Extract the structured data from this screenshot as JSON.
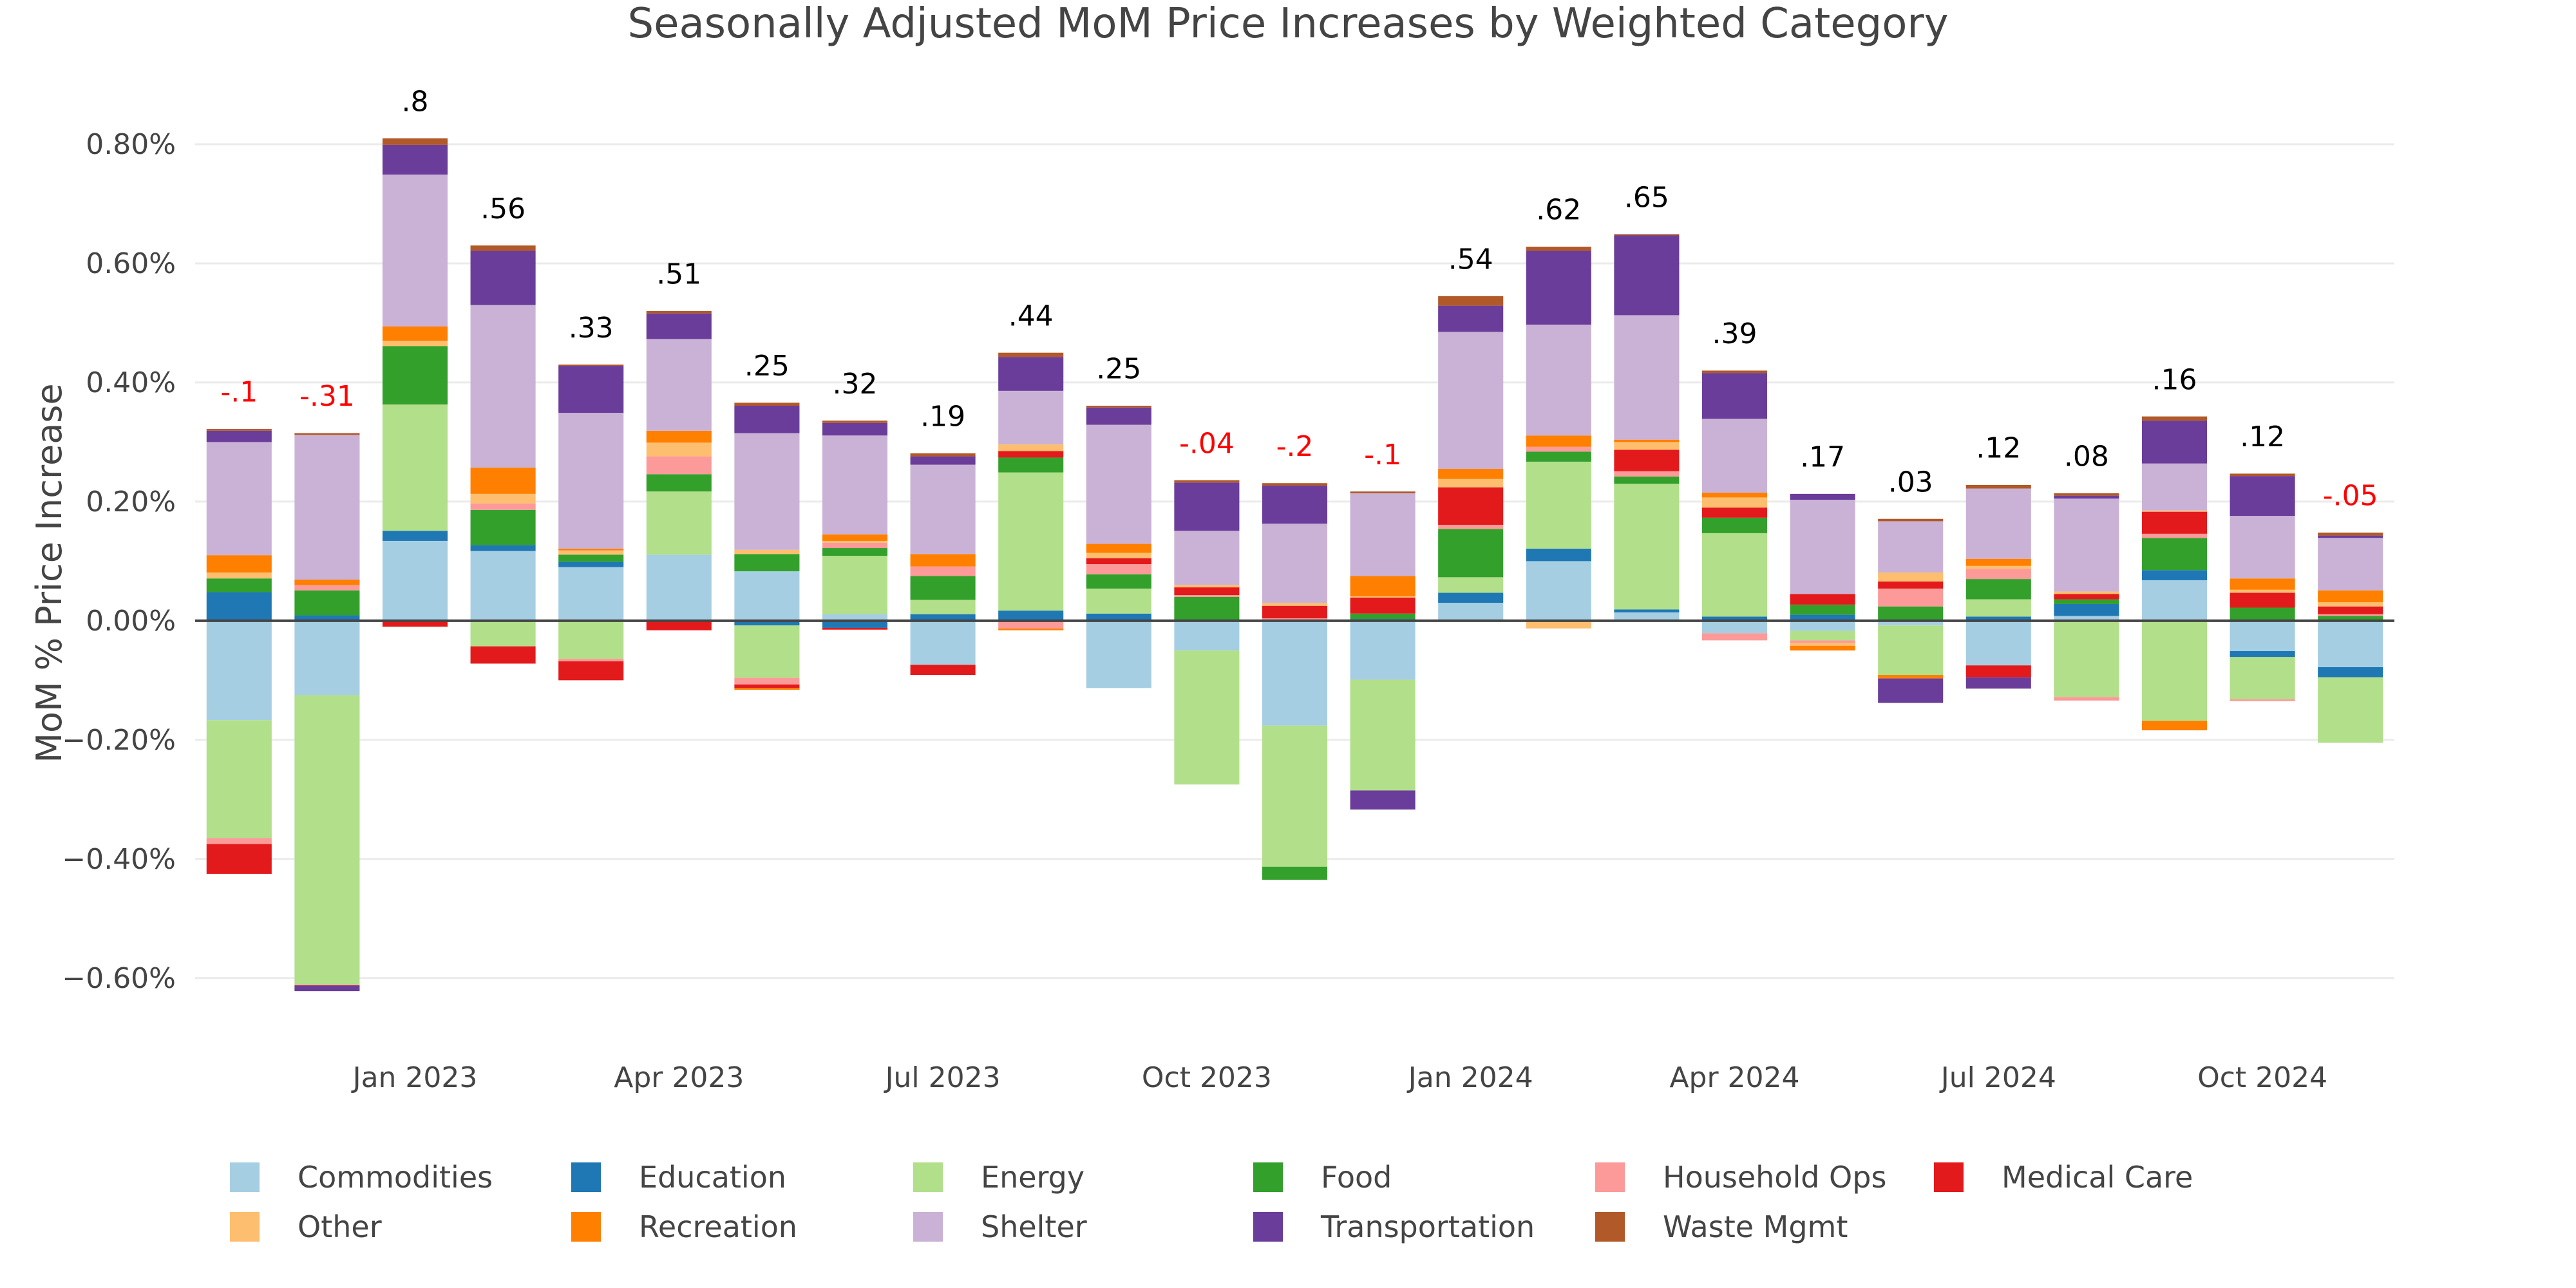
{
  "chart_data": {
    "type": "bar",
    "barmode": "relative",
    "title": "Seasonally Adjusted MoM Price Increases by Weighted Category",
    "xlabel": "",
    "ylabel": "MoM % Price Increase",
    "ylim": [
      -0.69,
      0.88
    ],
    "grid": true,
    "legend_placement": "bottom",
    "x": [
      "2022-11",
      "2022-12",
      "2023-01",
      "2023-02",
      "2023-03",
      "2023-04",
      "2023-05",
      "2023-06",
      "2023-07",
      "2023-08",
      "2023-09",
      "2023-10",
      "2023-11",
      "2023-12",
      "2024-01",
      "2024-02",
      "2024-03",
      "2024-04",
      "2024-05",
      "2024-06",
      "2024-07",
      "2024-08",
      "2024-09",
      "2024-10",
      "2024-11"
    ],
    "x_ticks": [
      {
        "x": "2023-01",
        "label": "Jan 2023"
      },
      {
        "x": "2023-04",
        "label": "Apr 2023"
      },
      {
        "x": "2023-07",
        "label": "Jul 2023"
      },
      {
        "x": "2023-10",
        "label": "Oct 2023"
      },
      {
        "x": "2024-01",
        "label": "Jan 2024"
      },
      {
        "x": "2024-04",
        "label": "Apr 2024"
      },
      {
        "x": "2024-07",
        "label": "Jul 2024"
      },
      {
        "x": "2024-10",
        "label": "Oct 2024"
      }
    ],
    "y_ticks": [
      {
        "v": 0.8,
        "label": "0.80%"
      },
      {
        "v": 0.6,
        "label": "0.60%"
      },
      {
        "v": 0.4,
        "label": "0.40%"
      },
      {
        "v": 0.2,
        "label": "0.20%"
      },
      {
        "v": 0,
        "label": "0.00%"
      },
      {
        "v": -0.2,
        "label": "−0.20%"
      },
      {
        "v": -0.4,
        "label": "−0.40%"
      },
      {
        "v": -0.6,
        "label": "−0.60%"
      }
    ],
    "total_labels": [
      {
        "text": "-.1",
        "value": -0.1
      },
      {
        "text": "-.31",
        "value": -0.31
      },
      {
        "text": ".8",
        "value": 0.8
      },
      {
        "text": ".56",
        "value": 0.56
      },
      {
        "text": ".33",
        "value": 0.33
      },
      {
        "text": ".51",
        "value": 0.51
      },
      {
        "text": ".25",
        "value": 0.25
      },
      {
        "text": ".32",
        "value": 0.32
      },
      {
        "text": ".19",
        "value": 0.19
      },
      {
        "text": ".44",
        "value": 0.44
      },
      {
        "text": ".25",
        "value": 0.25
      },
      {
        "text": "-.04",
        "value": -0.04
      },
      {
        "text": "-.2",
        "value": -0.2
      },
      {
        "text": "-.1",
        "value": -0.1
      },
      {
        "text": ".54",
        "value": 0.54
      },
      {
        "text": ".62",
        "value": 0.62
      },
      {
        "text": ".65",
        "value": 0.65
      },
      {
        "text": ".39",
        "value": 0.39
      },
      {
        "text": ".17",
        "value": 0.17
      },
      {
        "text": ".03",
        "value": 0.03
      },
      {
        "text": ".12",
        "value": 0.12
      },
      {
        "text": ".08",
        "value": 0.08
      },
      {
        "text": ".16",
        "value": 0.16
      },
      {
        "text": ".12",
        "value": 0.12
      },
      {
        "text": "-.05",
        "value": -0.05
      }
    ],
    "positive_label_color": "#000000",
    "negative_label_color": "#ff0000",
    "series": [
      {
        "name": "Commodities",
        "color": "#a6cee3",
        "values": [
          -0.167,
          -0.125,
          0.134,
          0.117,
          0.09,
          0.111,
          0.083,
          0.011,
          -0.074,
          0,
          -0.113,
          -0.05,
          -0.176,
          -0.099,
          0.03,
          0.1,
          0.014,
          -0.021,
          -0.017,
          -0.008,
          -0.075,
          0.008,
          0.068,
          -0.051,
          -0.078
        ]
      },
      {
        "name": "Education",
        "color": "#1f78b4",
        "values": [
          0.048,
          0.009,
          0.017,
          0.01,
          0.009,
          0,
          -0.008,
          -0.012,
          0.011,
          0.017,
          0.012,
          0,
          0,
          0.003,
          0.017,
          0.021,
          0.005,
          0.007,
          0.01,
          0,
          0.007,
          0.02,
          0.017,
          -0.01,
          -0.017
        ]
      },
      {
        "name": "Energy",
        "color": "#b2df8a",
        "values": [
          -0.198,
          -0.485,
          0.212,
          -0.043,
          -0.064,
          0.106,
          -0.088,
          0.098,
          0.024,
          0.232,
          0.042,
          -0.225,
          -0.237,
          -0.186,
          0.026,
          0.146,
          0.211,
          0.14,
          -0.016,
          -0.083,
          0.029,
          -0.128,
          -0.168,
          -0.071,
          -0.11
        ]
      },
      {
        "name": "Food",
        "color": "#33a02c",
        "values": [
          0.023,
          0.042,
          0.098,
          0.059,
          0.012,
          0.029,
          0.029,
          0.013,
          0.04,
          0.025,
          0.024,
          0.04,
          -0.022,
          0.009,
          0.081,
          0.017,
          0.012,
          0.026,
          0.017,
          0.024,
          0.034,
          0.008,
          0.054,
          0.022,
          0.008
        ]
      },
      {
        "name": "Household Ops",
        "color": "#fb9a99",
        "values": [
          -0.01,
          0.009,
          0,
          0.011,
          -0.004,
          0.03,
          -0.011,
          0.009,
          0.016,
          -0.013,
          0.017,
          0.003,
          0.004,
          0,
          0.007,
          0.008,
          0.009,
          -0.012,
          -0.004,
          0.03,
          0.017,
          -0.006,
          0.007,
          -0.003,
          0.003
        ]
      },
      {
        "name": "Medical Care",
        "color": "#e31a1c",
        "values": [
          -0.05,
          0,
          -0.01,
          -0.029,
          -0.032,
          -0.016,
          -0.006,
          -0.003,
          -0.017,
          0.011,
          0.01,
          0.013,
          0.021,
          0.027,
          0.063,
          -0.002,
          0.036,
          0.017,
          0.018,
          0.012,
          -0.02,
          0.009,
          0.037,
          0.025,
          0.013
        ]
      },
      {
        "name": "Other",
        "color": "#fdbf6f",
        "values": [
          0.01,
          -0.002,
          0.009,
          0.016,
          0.007,
          0.023,
          0.007,
          0.003,
          0,
          0.011,
          0.009,
          0.004,
          0.005,
          0.002,
          0.014,
          -0.011,
          0.013,
          0.017,
          -0.005,
          0.015,
          0.005,
          0.004,
          0.002,
          0.005,
          0.007
        ]
      },
      {
        "name": "Recreation",
        "color": "#ff7f00",
        "values": [
          0.029,
          0.009,
          0.024,
          0.044,
          0.003,
          0.02,
          -0.003,
          0.011,
          0.021,
          -0.003,
          0.015,
          0,
          0,
          0.034,
          0.017,
          0.019,
          0.004,
          0.008,
          -0.008,
          -0.006,
          0.012,
          0,
          -0.016,
          0.019,
          0.02
        ]
      },
      {
        "name": "Shelter",
        "color": "#cab2d6",
        "values": [
          0.19,
          0.243,
          0.255,
          0.273,
          0.228,
          0.154,
          0.196,
          0.166,
          0.15,
          0.09,
          0.2,
          0.091,
          0.133,
          0.139,
          0.23,
          0.186,
          0.209,
          0.124,
          0.158,
          0.086,
          0.118,
          0.156,
          0.079,
          0.105,
          0.088
        ]
      },
      {
        "name": "Transportation",
        "color": "#6a3d9a",
        "values": [
          0.019,
          -0.01,
          0.05,
          0.091,
          0.079,
          0.043,
          0.046,
          0.021,
          0.014,
          0.057,
          0.029,
          0.081,
          0.064,
          -0.032,
          0.044,
          0.124,
          0.134,
          0.077,
          0.01,
          -0.041,
          -0.019,
          0.005,
          0.072,
          0.067,
          0.004
        ]
      },
      {
        "name": "Waste Mgmt",
        "color": "#b15928",
        "values": [
          0.003,
          0.003,
          0.011,
          0.009,
          0.002,
          0.004,
          0.005,
          0.004,
          0.005,
          0.007,
          0.003,
          0.004,
          0.004,
          0.003,
          0.016,
          0.007,
          0.002,
          0.004,
          0,
          0.004,
          0.006,
          0.004,
          0.007,
          0.004,
          0.005
        ]
      }
    ]
  }
}
